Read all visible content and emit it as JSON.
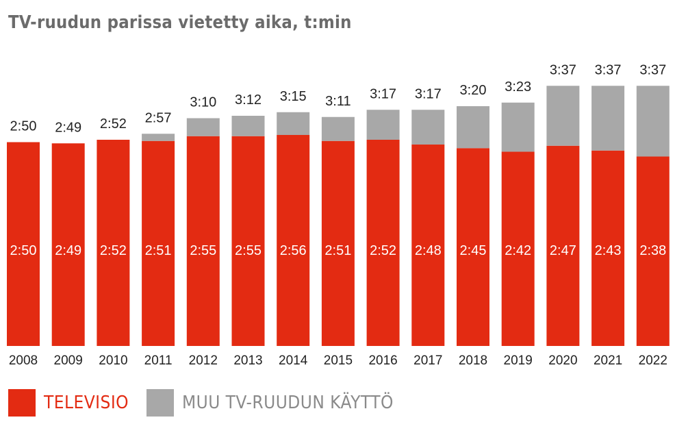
{
  "chart_data": {
    "type": "bar",
    "stacked": true,
    "title": "TV-ruudun parissa vietetty aika, t:min",
    "categories": [
      "2008",
      "2009",
      "2010",
      "2011",
      "2012",
      "2013",
      "2014",
      "2015",
      "2016",
      "2017",
      "2018",
      "2019",
      "2020",
      "2021",
      "2022"
    ],
    "series": [
      {
        "name": "TELEVISIO",
        "color": "#e32b12",
        "values": [
          170,
          169,
          172,
          171,
          175,
          175,
          176,
          171,
          172,
          168,
          165,
          162,
          167,
          163,
          158
        ],
        "labels": [
          "2:50",
          "2:49",
          "2:52",
          "2:51",
          "2:55",
          "2:55",
          "2:56",
          "2:51",
          "2:52",
          "2:48",
          "2:45",
          "2:42",
          "2:47",
          "2:43",
          "2:38"
        ]
      },
      {
        "name": "MUU TV-RUUDUN KÄYTTÖ",
        "color": "#a8a8a8",
        "values": [
          0,
          0,
          0,
          6,
          15,
          17,
          19,
          20,
          25,
          29,
          35,
          41,
          50,
          54,
          59
        ]
      }
    ],
    "totals": [
      "2:50",
      "2:49",
      "2:52",
      "2:57",
      "3:10",
      "3:12",
      "3:15",
      "3:11",
      "3:17",
      "3:17",
      "3:20",
      "3:23",
      "3:37",
      "3:37",
      "3:37"
    ],
    "ylim": [
      0,
      240
    ],
    "yunit": "min",
    "grid": false,
    "legend_position": "bottom-left"
  },
  "legend": {
    "tv_label": "TELEVISIO",
    "other_label": "MUU TV-RUUDUN KÄYTTÖ"
  },
  "colors": {
    "tv": "#e32b12",
    "other": "#a8a8a8",
    "title": "#6b6b6b",
    "legend_other_text": "#8a8a8a"
  }
}
